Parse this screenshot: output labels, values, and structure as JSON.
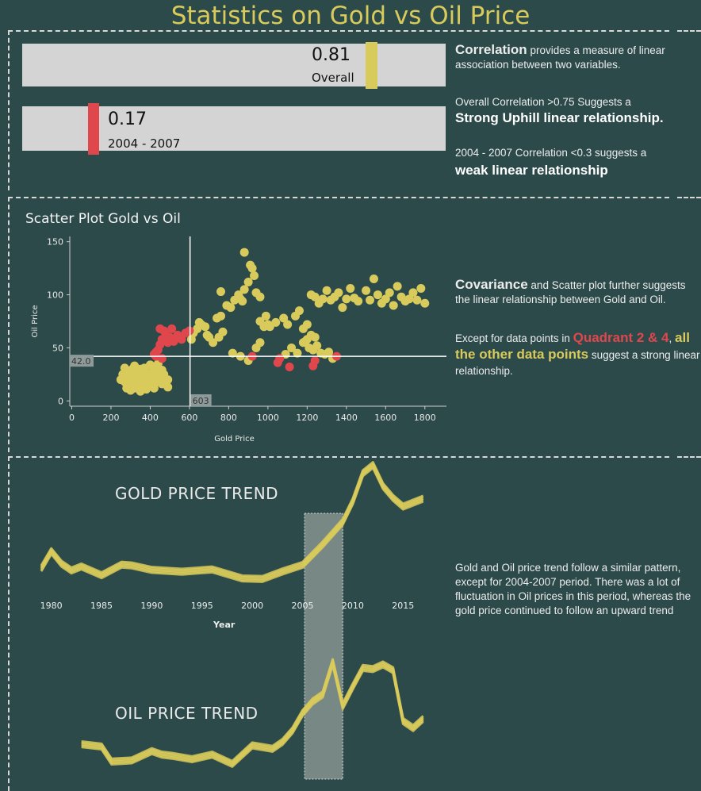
{
  "title": "Statistics on Gold vs Oil Price",
  "kpis": [
    {
      "value": "0.81",
      "label": "Overall",
      "color": "#d9cb5b",
      "fraction": 0.81
    },
    {
      "value": "0.17",
      "label": "2004 - 2007",
      "color": "#e0474c",
      "fraction": 0.17
    }
  ],
  "correlation_text": {
    "term": "Correlation",
    "desc": " provides a measure of linear association between two variables.",
    "overall_line": "Overall Correlation  >0.75 Suggests a",
    "overall_strong": "Strong Uphill linear relationship.",
    "period_line": "2004 - 2007 Correlation <0.3 suggests a",
    "period_weak": "weak linear relationship"
  },
  "scatter_title": "Scatter Plot Gold vs Oil",
  "covariance_text": {
    "term": "Covariance",
    "desc": " and Scatter plot further suggests the linear relationship between Gold and Oil.",
    "except_pre": "Except for data points in ",
    "quadrant": "Quadrant 2 & 4",
    "comma": ",",
    "others": "all the other data points",
    "suggest": " suggest a strong linear relationship."
  },
  "trend_text": "Gold and Oil price trend follow a similar pattern, except for 2004-2007 period.  There was a lot of fluctuation in Oil prices in this period, whereas the gold price continued to follow an upward trend",
  "gold_trend_title": "GOLD PRICE TREND",
  "oil_trend_title": "OIL PRICE TREND",
  "colors": {
    "background": "#2d4a4b",
    "gold": "#d9cb5b",
    "red": "#e0474c",
    "bar_bg": "#d4d4d4"
  },
  "chart_data": [
    {
      "type": "scatter",
      "title": "Scatter Plot Gold vs Oil",
      "xlabel": "Gold Price",
      "ylabel": "Oil Price",
      "xlim": [
        -10,
        1910
      ],
      "ylim": [
        -5,
        155
      ],
      "xticks": [
        "0",
        "200",
        "400",
        "600",
        "800",
        "1000",
        "1200",
        "1400",
        "1600",
        "1800"
      ],
      "xtick_values": [
        0,
        200,
        400,
        600,
        800,
        1000,
        1200,
        1400,
        1600,
        1800
      ],
      "yticks": [
        "0",
        "50",
        "100",
        "150"
      ],
      "ytick_values": [
        0,
        50,
        100,
        150
      ],
      "reference_lines": {
        "x": 603,
        "x_label": "603",
        "y": 42.0,
        "y_label": "42.0"
      },
      "series": [
        {
          "color": "#d9cb5b",
          "points": [
            [
              260,
              25
            ],
            [
              270,
              18
            ],
            [
              280,
              22
            ],
            [
              290,
              15
            ],
            [
              300,
              28
            ],
            [
              310,
              20
            ],
            [
              320,
              12
            ],
            [
              330,
              24
            ],
            [
              340,
              18
            ],
            [
              350,
              30
            ],
            [
              360,
              14
            ],
            [
              370,
              22
            ],
            [
              380,
              26
            ],
            [
              390,
              17
            ],
            [
              400,
              20
            ],
            [
              410,
              32
            ],
            [
              420,
              24
            ],
            [
              430,
              19
            ],
            [
              440,
              28
            ],
            [
              450,
              22
            ],
            [
              460,
              16
            ],
            [
              470,
              25
            ],
            [
              480,
              18
            ],
            [
              490,
              13
            ],
            [
              270,
              31
            ],
            [
              300,
              10
            ],
            [
              320,
              33
            ],
            [
              350,
              9
            ],
            [
              380,
              11
            ],
            [
              400,
              34
            ],
            [
              420,
              12
            ],
            [
              440,
              35
            ],
            [
              300,
              22
            ],
            [
              330,
              16
            ],
            [
              360,
              27
            ],
            [
              390,
              24
            ],
            [
              250,
              20
            ],
            [
              280,
              12
            ],
            [
              310,
              30
            ],
            [
              340,
              23
            ],
            [
              370,
              31
            ],
            [
              400,
              15
            ],
            [
              430,
              23
            ],
            [
              460,
              29
            ],
            [
              490,
              20
            ],
            [
              285,
              26
            ],
            [
              345,
              20
            ],
            [
              375,
              17
            ],
            [
              415,
              27
            ],
            [
              445,
              18
            ],
            [
              610,
              58
            ],
            [
              620,
              64
            ],
            [
              640,
              68
            ],
            [
              660,
              72
            ],
            [
              680,
              70
            ],
            [
              700,
              60
            ],
            [
              720,
              55
            ],
            [
              650,
              74
            ],
            [
              690,
              62
            ],
            [
              740,
              78
            ],
            [
              760,
              80
            ],
            [
              790,
              90
            ],
            [
              810,
              88
            ],
            [
              830,
              95
            ],
            [
              850,
              100
            ],
            [
              870,
              94
            ],
            [
              880,
              105
            ],
            [
              900,
              112
            ],
            [
              920,
              125
            ],
            [
              940,
              102
            ],
            [
              960,
              98
            ],
            [
              980,
              70
            ],
            [
              1000,
              72
            ],
            [
              820,
              45
            ],
            [
              860,
              42
            ],
            [
              900,
              38
            ],
            [
              940,
              50
            ],
            [
              960,
              55
            ],
            [
              1010,
              70
            ],
            [
              1040,
              74
            ],
            [
              1080,
              78
            ],
            [
              1100,
              72
            ],
            [
              1140,
              80
            ],
            [
              1160,
              85
            ],
            [
              1180,
              68
            ],
            [
              1200,
              72
            ],
            [
              1220,
              100
            ],
            [
              1240,
              98
            ],
            [
              1260,
              92
            ],
            [
              1280,
              96
            ],
            [
              1300,
              104
            ],
            [
              1320,
              95
            ],
            [
              1340,
              98
            ],
            [
              1360,
              102
            ],
            [
              1380,
              88
            ],
            [
              1400,
              96
            ],
            [
              1420,
              106
            ],
            [
              1440,
              97
            ],
            [
              1460,
              94
            ],
            [
              1500,
              104
            ],
            [
              1520,
              95
            ],
            [
              1540,
              115
            ],
            [
              1560,
              100
            ],
            [
              1580,
              92
            ],
            [
              1600,
              96
            ],
            [
              1620,
              102
            ],
            [
              1640,
              90
            ],
            [
              1660,
              108
            ],
            [
              1680,
              98
            ],
            [
              1700,
              94
            ],
            [
              1720,
              96
            ],
            [
              1740,
              102
            ],
            [
              1760,
              95
            ],
            [
              1780,
              106
            ],
            [
              1800,
              92
            ],
            [
              1190,
              56
            ],
            [
              1210,
              50
            ],
            [
              1230,
              48
            ],
            [
              1250,
              52
            ],
            [
              1270,
              45
            ],
            [
              1290,
              44
            ],
            [
              1310,
              46
            ],
            [
              1330,
              40
            ],
            [
              1150,
              45
            ],
            [
              1120,
              50
            ],
            [
              1090,
              44
            ],
            [
              1240,
              60
            ],
            [
              1220,
              62
            ],
            [
              1200,
              58
            ],
            [
              1180,
              55
            ],
            [
              960,
              75
            ],
            [
              990,
              80
            ],
            [
              860,
              96
            ],
            [
              930,
              118
            ],
            [
              910,
              128
            ],
            [
              880,
              140
            ],
            [
              760,
              103
            ],
            [
              750,
              60
            ],
            [
              770,
              65
            ]
          ]
        },
        {
          "color": "#e0474c",
          "points": [
            [
              430,
              42
            ],
            [
              440,
              48
            ],
            [
              450,
              53
            ],
            [
              460,
              58
            ],
            [
              470,
              66
            ],
            [
              480,
              62
            ],
            [
              500,
              60
            ],
            [
              520,
              56
            ],
            [
              540,
              62
            ],
            [
              560,
              58
            ],
            [
              580,
              64
            ],
            [
              600,
              66
            ],
            [
              450,
              68
            ],
            [
              430,
              46
            ],
            [
              460,
              40
            ],
            [
              420,
              44
            ],
            [
              490,
              55
            ],
            [
              510,
              68
            ],
            [
              920,
              42
            ],
            [
              1050,
              36
            ],
            [
              1060,
              40
            ],
            [
              1110,
              32
            ],
            [
              1230,
              33
            ],
            [
              1240,
              38
            ],
            [
              1350,
              42
            ]
          ]
        }
      ]
    },
    {
      "type": "line",
      "title": "GOLD PRICE TREND",
      "xlabel": "Year",
      "x": [
        1979,
        1980,
        1981,
        1982,
        1983,
        1985,
        1987,
        1988,
        1990,
        1993,
        1996,
        1999,
        2001,
        2003,
        2005,
        2007,
        2009,
        2010,
        2011,
        2012,
        2013,
        2014,
        2015,
        2017
      ],
      "xticks": [
        "1980",
        "1985",
        "1990",
        "1995",
        "2000",
        "2005",
        "2010",
        "2015"
      ],
      "xtick_values": [
        1980,
        1985,
        1990,
        1995,
        2000,
        2005,
        2010,
        2015
      ],
      "series": [
        {
          "values": [
            400,
            612,
            460,
            376,
            424,
            317,
            447,
            437,
            383,
            360,
            388,
            278,
            271,
            363,
            444,
            695,
            972,
            1225,
            1570,
            1669,
            1411,
            1266,
            1160,
            1257
          ]
        }
      ],
      "highlight_range": [
        2005,
        2009
      ]
    },
    {
      "type": "line",
      "title": "OIL PRICE TREND",
      "x": [
        1983,
        1985,
        1986,
        1988,
        1990,
        1991,
        1992,
        1994,
        1996,
        1998,
        2000,
        2002,
        2003,
        2004,
        2005,
        2006,
        2007,
        2008,
        2009,
        2010,
        2011,
        2012,
        2013,
        2014,
        2015,
        2016,
        2017
      ],
      "series": [
        {
          "values": [
            29,
            27,
            14,
            15,
            23,
            20,
            19,
            16,
            20,
            12,
            28,
            25,
            31,
            41,
            56,
            66,
            72,
            100,
            62,
            79,
            95,
            94,
            98,
            93,
            49,
            43,
            51
          ]
        }
      ],
      "highlight_range": [
        2005,
        2009
      ]
    }
  ]
}
